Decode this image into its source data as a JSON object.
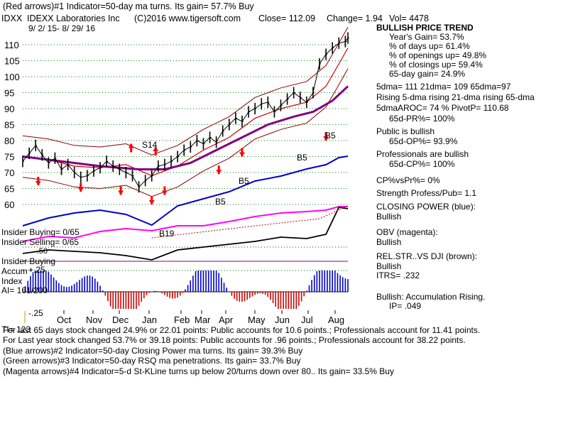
{
  "header": {
    "line1": "(Red arrows)#1 Indicator=50-day ma turns. Its gain= 57.7% Buy",
    "ticker": "IDXX",
    "company": "IDEXX Laboratories Inc",
    "copyright": "(C)2016 www.tigersoft.com",
    "close": "Close= 112.09",
    "change": "Change= 1.94",
    "vol": "Vol= 4478",
    "date_range": "9/ 2/ 15- 8/ 29/ 16"
  },
  "stats": {
    "trend_title": "BULLISH PRICE TREND",
    "years_gain": "Year's Gain= 53.7%",
    "pct_days_up": "% of days up= 61.4%",
    "pct_openings_up": "% of openings up= 49.8%",
    "pct_closings_up": "% of closings up= 59.4%",
    "gain_65": "65-day gain= 24.9%",
    "dma": "5dma= 111 21dma= 109 65dma=97",
    "rising": "Rising 5-dma rising 21-dma rising 65-dma",
    "aroc": "5dmaAROC= 74 %  PivotP= 110.68",
    "pr": "65d-PR%= 100%",
    "public": "Public is bullish",
    "op": "65d-OP%= 93.9%",
    "professionals": "Professionals are bullish",
    "cp": "65d-CP%= 100%",
    "cpvspr": "CP%vsPr%=  0%",
    "strength": "Strength Profess/Pub= 1.1",
    "closing_power_title": "CLOSING POWER (blue):",
    "closing_power_val": "Bullish",
    "obv_title": "OBV (magenta):",
    "obv_val": "Bullish",
    "relstr_title": "REL.STR..VS DJI (brown):",
    "relstr_val": "Bullish",
    "itrs": "ITRS= .232",
    "accum": "Bullish: Accumulation Rising.",
    "ip": "IP=  .049"
  },
  "left_labels": {
    "insider_buying_count": "Insider Buying= 0/65",
    "insider_selling_count": "Insider Selling= 0/65",
    "insider_buying": "Insider Buying",
    "accum": "Accum",
    "plus25": "+.25",
    "index": "Index",
    "ai": "AI= 161/200",
    "minus25": "-.25",
    "minus50": "-.50"
  },
  "annotations": {
    "s14": "S14",
    "b5": "B5",
    "b19": "B19"
  },
  "footer": {
    "line1_overlap": "TI= 123",
    "line1": "For last 65 days stock changed  24.9% or  22.01 points:  Public accounts for  10.6 points.;  Professionals account for  11.41 points.",
    "line2": "For Last year stock changed  53.7% or  39.18 points:  Public accounts for  .96 points.;  Professionals account for  38.22 points.",
    "line3": "(Blue arrows)#2 Indicator=50-day Closing Power ma turns. Its gain= 39.3% Buy",
    "line4": "(Green arrows)#3 Indicator=50-day RSQ ma penetrations. Its gain= 33.7% Buy",
    "line5": "(Magenta arrows)#4 Indicator=5-d St-KLine turns up below 20/turns down over 80.. Its gain= 33.5% Buy"
  },
  "colors": {
    "price": "#000000",
    "ma_upper": "#8b0000",
    "ma_mid": "#800080",
    "closing_power": "#0000cc",
    "obv": "#ff00ff",
    "rel_str": "#000000",
    "grid": "#008000",
    "accum_pos": "#0000cc",
    "accum_neg": "#cc0000",
    "arrow": "#ff0000"
  },
  "chart_data": {
    "type": "line",
    "title": "IDXX IDEXX Laboratories Inc",
    "x_labels": [
      "Oct",
      "Nov",
      "Dec",
      "Jan",
      "Feb",
      "Mar",
      "Apr",
      "May",
      "Jun",
      "Jul",
      "Aug"
    ],
    "y_ticks": [
      60,
      65,
      70,
      75,
      80,
      85,
      90,
      95,
      100,
      105,
      110
    ],
    "ylim": [
      57,
      117
    ],
    "series": [
      {
        "name": "Price",
        "x": [
          0,
          5,
          10,
          15,
          20,
          25,
          30,
          35,
          40,
          45,
          50,
          55,
          60,
          65,
          70,
          75,
          80,
          85,
          90,
          95,
          100,
          105,
          110,
          115,
          120,
          125,
          130,
          135,
          140,
          145,
          150,
          155,
          160,
          165,
          170,
          175,
          180,
          185,
          190,
          195,
          200,
          205,
          210,
          215,
          220,
          225,
          230,
          235,
          240,
          245,
          250,
          252
        ],
        "values": [
          73.5,
          76,
          78.5,
          75.5,
          73,
          74.5,
          71,
          72.5,
          70,
          68.5,
          69,
          70.5,
          71.5,
          73.5,
          72,
          71,
          70,
          69,
          65.5,
          67.5,
          69,
          72,
          72.5,
          73.5,
          75,
          77,
          78,
          80,
          79,
          81,
          79.5,
          83,
          85,
          87,
          86,
          89,
          90,
          91.5,
          92,
          89,
          91,
          93,
          95,
          93.5,
          92,
          95,
          104,
          107,
          109,
          110.5,
          111,
          112.09
        ]
      },
      {
        "name": "21-dma",
        "x": [
          0,
          20,
          40,
          60,
          80,
          100,
          120,
          140,
          160,
          180,
          200,
          220,
          235,
          245,
          252
        ],
        "values": [
          75,
          74,
          72,
          71.5,
          72.5,
          69,
          72,
          77,
          81,
          87,
          90,
          92,
          97,
          104,
          109
        ]
      },
      {
        "name": "65-dma",
        "x": [
          0,
          30,
          60,
          90,
          110,
          130,
          150,
          170,
          190,
          210,
          225,
          240,
          252
        ],
        "values": [
          75,
          73.5,
          72,
          71,
          71,
          73,
          77,
          81,
          85,
          87.5,
          89,
          92.5,
          97
        ]
      }
    ],
    "panels": {
      "closing_power": "Bullish",
      "obv": "Bullish",
      "rel_str_vs_dji": "Bullish",
      "accumulation_index": "AI= 161/200"
    }
  }
}
